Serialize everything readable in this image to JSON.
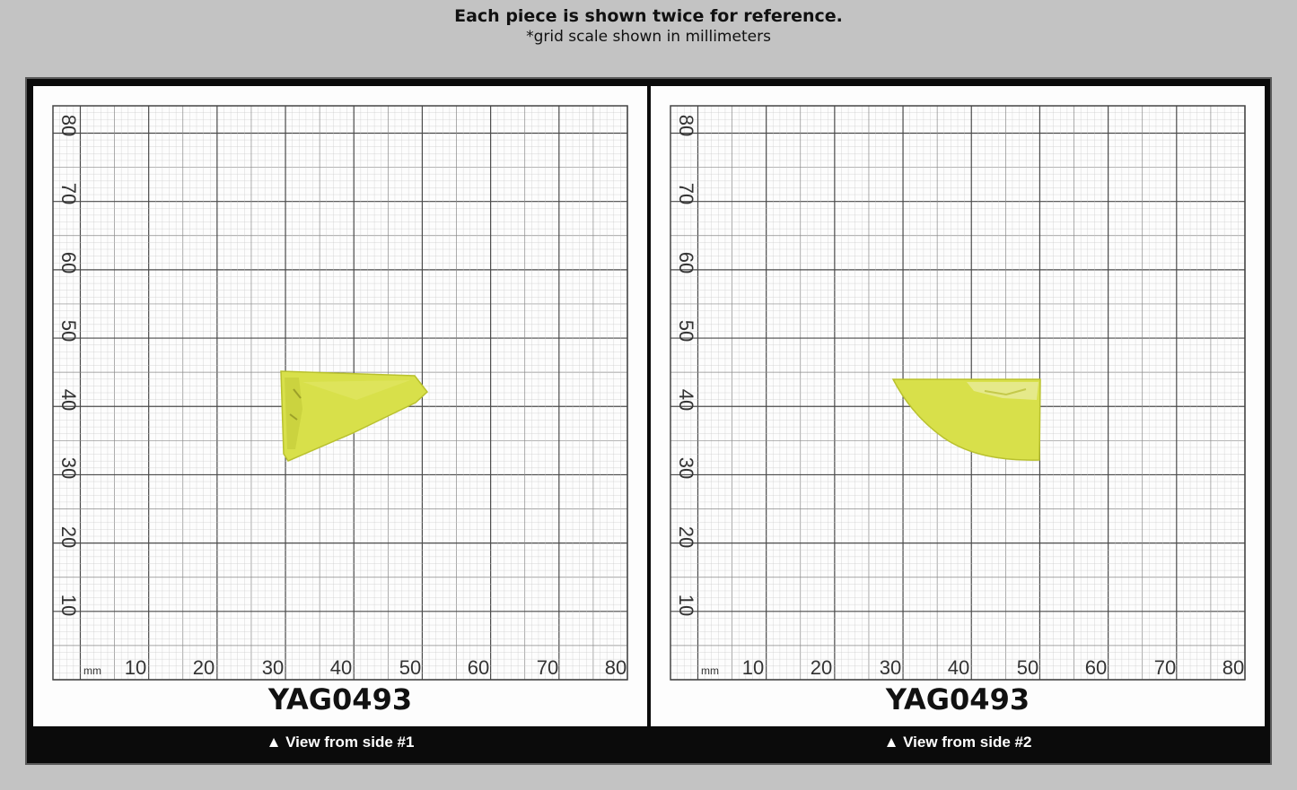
{
  "header": {
    "title": "Each piece is shown twice for reference.",
    "subtitle": "*grid scale shown in millimeters"
  },
  "grid": {
    "unit": "mm",
    "x_ticks": [
      "10",
      "20",
      "30",
      "40",
      "50",
      "60",
      "70",
      "80"
    ],
    "y_ticks": [
      "80",
      "70",
      "60",
      "50",
      "40",
      "30",
      "20",
      "10"
    ]
  },
  "views": [
    {
      "label": "YAG0493",
      "caption": "▲ View from side #1"
    },
    {
      "label": "YAG0493",
      "caption": "▲ View from side #2"
    }
  ],
  "colors": {
    "background": "#c3c3c3",
    "frame": "#0b0b0b",
    "crystal": "#d8e04a",
    "grid_line": "#5c5c5c"
  }
}
